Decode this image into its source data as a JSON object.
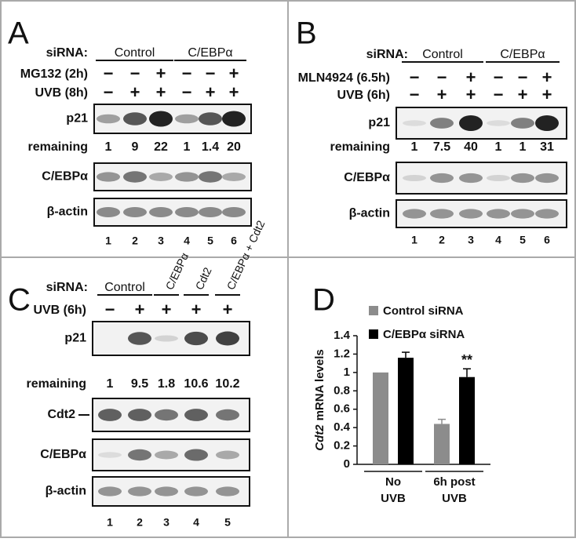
{
  "panels": {
    "A": {
      "letter": "A",
      "sirna": "siRNA:",
      "groups": [
        "Control",
        "C/EBPα"
      ],
      "treatments": [
        {
          "label": "MG132 (2h)",
          "signs": [
            "−",
            "−",
            "+",
            "−",
            "−",
            "+"
          ]
        },
        {
          "label": "UVB (8h)",
          "signs": [
            "−",
            "+",
            "+",
            "−",
            "+",
            "+"
          ]
        }
      ],
      "blots": [
        "p21",
        "C/EBPα",
        "β-actin"
      ],
      "remaining": {
        "label": "remaining",
        "values": [
          1,
          9,
          22,
          1,
          1.4,
          20
        ]
      },
      "lanes": [
        1,
        2,
        3,
        4,
        5,
        6
      ]
    },
    "B": {
      "letter": "B",
      "sirna": "siRNA:",
      "groups": [
        "Control",
        "C/EBPα"
      ],
      "treatments": [
        {
          "label": "MLN4924 (6.5h)",
          "signs": [
            "−",
            "−",
            "+",
            "−",
            "−",
            "+"
          ]
        },
        {
          "label": "UVB (6h)",
          "signs": [
            "−",
            "+",
            "+",
            "−",
            "+",
            "+"
          ]
        }
      ],
      "blots": [
        "p21",
        "C/EBPα",
        "β-actin"
      ],
      "remaining": {
        "label": "remaining",
        "values": [
          1,
          7.5,
          40,
          1,
          1,
          31
        ]
      },
      "lanes": [
        1,
        2,
        3,
        4,
        5,
        6
      ]
    },
    "C": {
      "letter": "C",
      "sirna": "siRNA:",
      "groups": [
        "Control",
        "C/EBPα",
        "Cdt2",
        "C/EBPα + Cdt2"
      ],
      "treatments": [
        {
          "label": "UVB (6h)",
          "signs": [
            "−",
            "+",
            "+",
            "+",
            "+"
          ]
        }
      ],
      "blots": [
        "p21",
        "Cdt2",
        "C/EBPα",
        "β-actin"
      ],
      "remaining": {
        "label": "remaining",
        "values": [
          1,
          9.5,
          1.8,
          10.6,
          10.2
        ]
      },
      "lanes": [
        1,
        2,
        3,
        4,
        5
      ]
    }
  },
  "chart_data": {
    "type": "bar",
    "letter": "D",
    "categories": [
      [
        "No",
        "UVB"
      ],
      [
        "6h post",
        "UVB"
      ]
    ],
    "series": [
      {
        "name": "Control siRNA",
        "color": "#8c8c8c",
        "values": [
          1,
          0.44
        ],
        "errors": [
          0,
          0.05
        ]
      },
      {
        "name": "C/EBPα siRNA",
        "color": "#000000",
        "values": [
          1.16,
          0.95
        ],
        "errors": [
          0.06,
          0.09
        ]
      }
    ],
    "y_label": [
      "Cdt2",
      "mRNA levels"
    ],
    "ylim": [
      0,
      1.4
    ],
    "yticks": [
      0,
      0.2,
      0.4,
      0.6,
      0.8,
      1,
      1.2,
      1.4
    ],
    "annotation": "**"
  }
}
